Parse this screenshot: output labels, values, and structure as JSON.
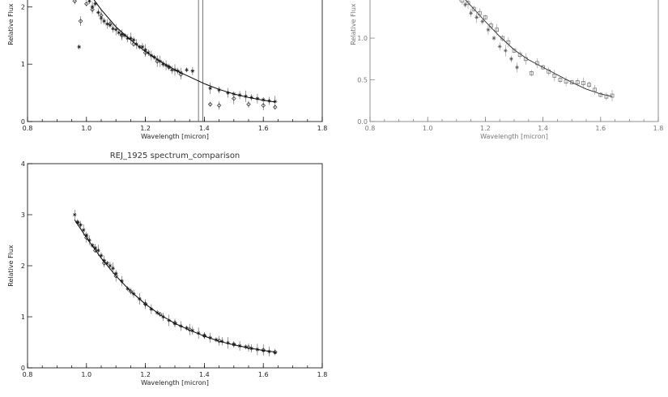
{
  "chart_data": [
    {
      "type": "scatter",
      "title": "",
      "xlabel": "Wavelength [micron]",
      "ylabel": "Relative Flux",
      "xlim": [
        0.8,
        1.8
      ],
      "ylim": [
        0,
        2.5
      ],
      "xticks": [
        "0.8",
        "1.0",
        "1.2",
        "1.4",
        "1.6",
        "1.8"
      ],
      "yticks": [
        "0",
        "1",
        "2"
      ],
      "vertical_lines": [
        1.38,
        1.395
      ],
      "series": [
        {
          "style": "fit-curve",
          "x": [
            0.96,
            1.0,
            1.05,
            1.1,
            1.15,
            1.2,
            1.25,
            1.3,
            1.35,
            1.4,
            1.45,
            1.5,
            1.55,
            1.6,
            1.64
          ],
          "y": [
            2.55,
            2.3,
            1.95,
            1.65,
            1.42,
            1.22,
            1.05,
            0.9,
            0.78,
            0.66,
            0.56,
            0.48,
            0.42,
            0.37,
            0.34
          ]
        },
        {
          "style": "star",
          "x": [
            0.96,
            0.975,
            0.99,
            1.0,
            1.01,
            1.02,
            1.03,
            1.04,
            1.05,
            1.06,
            1.07,
            1.08,
            1.09,
            1.1,
            1.11,
            1.12,
            1.13,
            1.14,
            1.15,
            1.16,
            1.17,
            1.18,
            1.19,
            1.2,
            1.21,
            1.22,
            1.23,
            1.24,
            1.25,
            1.26,
            1.27,
            1.28,
            1.29,
            1.3,
            1.31,
            1.32,
            1.34,
            1.36,
            1.42,
            1.45,
            1.48,
            1.5,
            1.52,
            1.54,
            1.56,
            1.58,
            1.6,
            1.62,
            1.64
          ],
          "y": [
            2.4,
            1.3,
            2.3,
            2.2,
            2.1,
            2.0,
            2.05,
            1.9,
            1.8,
            1.75,
            1.7,
            1.68,
            1.62,
            1.6,
            1.55,
            1.52,
            1.5,
            1.45,
            1.45,
            1.42,
            1.35,
            1.3,
            1.3,
            1.25,
            1.2,
            1.15,
            1.12,
            1.08,
            1.05,
            1.0,
            0.98,
            0.95,
            0.9,
            0.9,
            0.88,
            0.85,
            0.9,
            0.88,
            0.58,
            0.55,
            0.5,
            0.48,
            0.46,
            0.44,
            0.42,
            0.4,
            0.38,
            0.36,
            0.35
          ]
        },
        {
          "style": "diamond",
          "x": [
            0.96,
            0.98,
            1.0,
            1.02,
            1.05,
            1.08,
            1.12,
            1.16,
            1.2,
            1.24,
            1.28,
            1.32,
            1.42,
            1.45,
            1.5,
            1.55,
            1.6,
            1.64
          ],
          "y": [
            2.1,
            1.75,
            2.05,
            1.95,
            1.85,
            1.7,
            1.5,
            1.35,
            1.2,
            1.05,
            0.95,
            0.82,
            0.3,
            0.28,
            0.4,
            0.3,
            0.28,
            0.25
          ]
        }
      ]
    },
    {
      "type": "scatter",
      "title": "",
      "xlabel": "Wavelength [micron]",
      "ylabel": "Relative Flux",
      "xlim": [
        0.8,
        1.8
      ],
      "ylim": [
        0,
        1.65
      ],
      "xticks": [
        "0.8",
        "1.0",
        "1.2",
        "1.4",
        "1.6",
        "1.8"
      ],
      "yticks": [
        "0.0",
        "0.5",
        "1.0",
        "1.5"
      ],
      "series": [
        {
          "style": "fit-curve",
          "x": [
            1.08,
            1.12,
            1.16,
            1.2,
            1.25,
            1.3,
            1.35,
            1.4,
            1.45,
            1.5,
            1.55,
            1.6,
            1.64
          ],
          "y": [
            1.62,
            1.5,
            1.35,
            1.2,
            1.02,
            0.86,
            0.74,
            0.65,
            0.56,
            0.47,
            0.39,
            0.33,
            0.3
          ]
        },
        {
          "style": "square",
          "x": [
            1.08,
            1.1,
            1.12,
            1.14,
            1.16,
            1.18,
            1.2,
            1.22,
            1.24,
            1.26,
            1.28,
            1.3,
            1.32,
            1.34,
            1.36,
            1.38,
            1.4,
            1.42,
            1.44,
            1.46,
            1.48,
            1.5,
            1.52,
            1.54,
            1.56,
            1.58,
            1.6,
            1.62,
            1.64
          ],
          "y": [
            1.6,
            1.55,
            1.45,
            1.42,
            1.35,
            1.3,
            1.25,
            1.15,
            1.1,
            1.0,
            0.95,
            0.85,
            0.8,
            0.75,
            0.58,
            0.7,
            0.65,
            0.6,
            0.55,
            0.5,
            0.48,
            0.47,
            0.47,
            0.46,
            0.44,
            0.38,
            0.32,
            0.3,
            0.31
          ]
        },
        {
          "style": "star",
          "x": [
            1.09,
            1.11,
            1.13,
            1.15,
            1.17,
            1.19,
            1.21,
            1.23,
            1.25,
            1.27,
            1.29,
            1.31
          ],
          "y": [
            1.55,
            1.5,
            1.4,
            1.3,
            1.25,
            1.2,
            1.1,
            1.0,
            0.9,
            0.85,
            0.75,
            0.65
          ]
        }
      ]
    },
    {
      "type": "scatter",
      "title": "REJ_1925 spectrum_comparison",
      "xlabel": "Wavelength [micron]",
      "ylabel": "Relative Flux",
      "xlim": [
        0.8,
        1.8
      ],
      "ylim": [
        0,
        4
      ],
      "xticks": [
        "0.8",
        "1.0",
        "1.2",
        "1.4",
        "1.6",
        "1.8"
      ],
      "yticks": [
        "0",
        "1",
        "2",
        "3",
        "4"
      ],
      "series": [
        {
          "style": "fit-curve",
          "x": [
            0.96,
            1.0,
            1.05,
            1.1,
            1.15,
            1.2,
            1.25,
            1.3,
            1.35,
            1.4,
            1.45,
            1.5,
            1.55,
            1.6,
            1.64
          ],
          "y": [
            2.9,
            2.55,
            2.15,
            1.8,
            1.5,
            1.25,
            1.04,
            0.87,
            0.74,
            0.62,
            0.52,
            0.45,
            0.39,
            0.34,
            0.31
          ]
        },
        {
          "style": "star",
          "x": [
            0.96,
            0.97,
            0.98,
            0.99,
            1.0,
            1.01,
            1.02,
            1.03,
            1.04,
            1.05,
            1.06,
            1.07,
            1.08,
            1.09,
            1.1,
            1.12,
            1.14,
            1.16,
            1.18,
            1.2,
            1.22,
            1.24,
            1.26,
            1.28,
            1.3,
            1.32,
            1.34,
            1.36,
            1.38,
            1.4,
            1.42,
            1.44,
            1.46,
            1.48,
            1.5,
            1.52,
            1.54,
            1.56,
            1.58,
            1.6,
            1.62,
            1.64
          ],
          "y": [
            3.0,
            2.85,
            2.8,
            2.7,
            2.6,
            2.5,
            2.4,
            2.35,
            2.3,
            2.2,
            2.1,
            2.05,
            2.0,
            1.95,
            1.85,
            1.7,
            1.55,
            1.45,
            1.35,
            1.25,
            1.15,
            1.08,
            1.0,
            0.93,
            0.87,
            0.82,
            0.78,
            0.73,
            0.68,
            0.63,
            0.59,
            0.55,
            0.52,
            0.49,
            0.46,
            0.43,
            0.41,
            0.38,
            0.36,
            0.34,
            0.32,
            0.3
          ]
        },
        {
          "style": "diamond",
          "x": [
            0.97,
            1.0,
            1.03,
            1.06,
            1.1,
            1.15,
            1.2,
            1.25,
            1.3,
            1.35,
            1.4,
            1.45,
            1.5,
            1.55,
            1.6,
            1.64
          ],
          "y": [
            2.85,
            2.55,
            2.3,
            2.05,
            1.8,
            1.5,
            1.25,
            1.05,
            0.88,
            0.75,
            0.63,
            0.53,
            0.46,
            0.4,
            0.35,
            0.31
          ]
        }
      ]
    }
  ]
}
